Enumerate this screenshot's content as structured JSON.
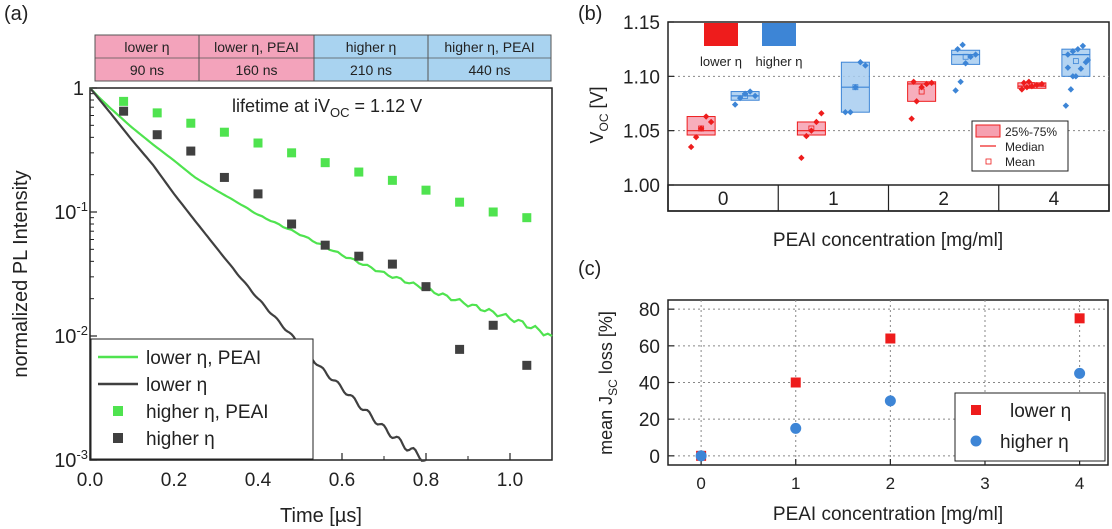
{
  "colors": {
    "green": "#4fe34f",
    "dark": "#404040",
    "red": "#ee1c1c",
    "blue": "#3d85d6",
    "pink": "#f3a3bb",
    "lightblue": "#a9d3f0",
    "boxred": "#f6a0b0",
    "boxblue": "#a7cdf0"
  },
  "chart_data": [
    {
      "panel": "(a)",
      "type": "scatter",
      "xlabel": "Time [µs]",
      "ylabel": "normalized PL Intensity",
      "xlim": [
        0,
        1.1
      ],
      "ylim": [
        0.001,
        1
      ],
      "yscale": "log",
      "xticks": [
        "0.0",
        "0.2",
        "0.4",
        "0.6",
        "0.8",
        "1.0"
      ],
      "yticks": [
        {
          "base": "1",
          "exp": ""
        },
        {
          "base": "10",
          "exp": "-1"
        },
        {
          "base": "10",
          "exp": "-2"
        },
        {
          "base": "10",
          "exp": "-3"
        }
      ],
      "annotation": {
        "prefix": "lifetime at iV",
        "sub": "OC",
        "suffix": " = 1.12 V"
      },
      "lifetime_table": [
        {
          "label": "lower η",
          "value": "90 ns",
          "group": "lower"
        },
        {
          "label": "lower η, PEAI",
          "value": "160 ns",
          "group": "lower"
        },
        {
          "label": "higher η",
          "value": "210 ns",
          "group": "higher"
        },
        {
          "label": "higher η, PEAI",
          "value": "440 ns",
          "group": "higher"
        }
      ],
      "legend": [
        "lower η, PEAI",
        "lower η",
        "higher η, PEAI",
        "higher η"
      ],
      "series": [
        {
          "name": "lower η, PEAI",
          "kind": "line",
          "x": [
            0,
            0.02,
            0.05,
            0.1,
            0.15,
            0.2,
            0.25,
            0.3,
            0.35,
            0.4,
            0.5,
            0.6,
            0.7,
            0.8,
            0.9,
            1.0,
            1.1
          ],
          "y": [
            1,
            0.85,
            0.68,
            0.48,
            0.35,
            0.26,
            0.19,
            0.15,
            0.12,
            0.095,
            0.066,
            0.045,
            0.032,
            0.024,
            0.018,
            0.014,
            0.01
          ]
        },
        {
          "name": "lower η",
          "kind": "line",
          "x": [
            0,
            0.05,
            0.1,
            0.15,
            0.2,
            0.25,
            0.3,
            0.35,
            0.4,
            0.45,
            0.5,
            0.55,
            0.6,
            0.65,
            0.7,
            0.75,
            0.8
          ],
          "y": [
            1,
            0.62,
            0.38,
            0.24,
            0.14,
            0.085,
            0.052,
            0.032,
            0.02,
            0.013,
            0.0085,
            0.0055,
            0.0038,
            0.0026,
            0.0018,
            0.0013,
            0.001
          ]
        },
        {
          "name": "higher η, PEAI",
          "kind": "points",
          "x": [
            0.08,
            0.16,
            0.24,
            0.32,
            0.4,
            0.48,
            0.56,
            0.64,
            0.72,
            0.8,
            0.88,
            0.96,
            1.04
          ],
          "y": [
            0.78,
            0.63,
            0.52,
            0.44,
            0.36,
            0.3,
            0.25,
            0.21,
            0.18,
            0.15,
            0.12,
            0.1,
            0.09
          ]
        },
        {
          "name": "higher η",
          "kind": "points",
          "x": [
            0.08,
            0.16,
            0.24,
            0.32,
            0.4,
            0.48,
            0.56,
            0.64,
            0.72,
            0.8,
            0.88,
            0.96,
            1.04
          ],
          "y": [
            0.65,
            0.42,
            0.31,
            0.19,
            0.14,
            0.08,
            0.054,
            0.044,
            0.038,
            0.025,
            0.0078,
            0.0122,
            0.0058
          ]
        }
      ]
    },
    {
      "panel": "(b)",
      "type": "box",
      "xlabel": "PEAI concentration [mg/ml]",
      "ylabel": {
        "main": "V",
        "sub": "OC",
        "unit": " [V]"
      },
      "categories": [
        "0",
        "1",
        "2",
        "4"
      ],
      "ylim": [
        1.0,
        1.15
      ],
      "yticks": [
        "1.00",
        "1.05",
        "1.10",
        "1.15"
      ],
      "legend_top": [
        "lower η",
        "higher η"
      ],
      "legend_box": [
        "25%-75%",
        "Median",
        "Mean"
      ],
      "boxes": [
        {
          "cat": 0,
          "group": "lower",
          "q1": 1.046,
          "q3": 1.063,
          "median": 1.05,
          "mean": 1.052,
          "points": [
            1.035,
            1.044,
            1.052,
            1.063,
            1.058
          ]
        },
        {
          "cat": 0,
          "group": "higher",
          "q1": 1.078,
          "q3": 1.086,
          "median": 1.082,
          "mean": 1.082,
          "points": [
            1.074,
            1.08,
            1.084,
            1.086,
            1.082
          ]
        },
        {
          "cat": 1,
          "group": "lower",
          "q1": 1.046,
          "q3": 1.058,
          "median": 1.05,
          "mean": 1.052,
          "points": [
            1.025,
            1.045,
            1.05,
            1.058,
            1.066
          ]
        },
        {
          "cat": 1,
          "group": "higher",
          "q1": 1.067,
          "q3": 1.113,
          "median": 1.09,
          "mean": 1.09,
          "points": [
            1.067,
            1.067,
            1.09,
            1.113,
            1.11
          ]
        },
        {
          "cat": 2,
          "group": "lower",
          "q1": 1.077,
          "q3": 1.095,
          "median": 1.093,
          "mean": 1.086,
          "points": [
            1.061,
            1.077,
            1.09,
            1.093,
            1.094,
            1.095
          ]
        },
        {
          "cat": 2,
          "group": "higher",
          "q1": 1.111,
          "q3": 1.124,
          "median": 1.12,
          "mean": 1.118,
          "points": [
            1.087,
            1.095,
            1.112,
            1.118,
            1.12,
            1.125,
            1.129
          ]
        },
        {
          "cat": 3,
          "group": "lower",
          "q1": 1.089,
          "q3": 1.094,
          "median": 1.091,
          "mean": 1.092,
          "points": [
            1.088,
            1.09,
            1.091,
            1.092,
            1.093,
            1.094,
            1.095
          ]
        },
        {
          "cat": 3,
          "group": "higher",
          "q1": 1.1,
          "q3": 1.125,
          "median": 1.12,
          "mean": 1.114,
          "points": [
            1.073,
            1.088,
            1.1,
            1.107,
            1.113,
            1.12,
            1.123,
            1.125,
            1.128,
            1.115,
            1.108,
            1.1
          ]
        }
      ]
    },
    {
      "panel": "(c)",
      "type": "scatter",
      "xlabel": "PEAI concentration [mg/ml]",
      "ylabel": {
        "main": "mean J",
        "sub": "SC",
        "unit": " loss [%]"
      },
      "xlim": [
        -0.35,
        4.3
      ],
      "ylim": [
        -5,
        85
      ],
      "xticks": [
        "0",
        "1",
        "2",
        "3",
        "4"
      ],
      "yticks": [
        "0",
        "20",
        "40",
        "60",
        "80"
      ],
      "series": [
        {
          "name": "lower η",
          "marker": "square",
          "x": [
            0,
            1,
            2,
            4
          ],
          "y": [
            0,
            40,
            64,
            75
          ]
        },
        {
          "name": "higher η",
          "marker": "circle",
          "x": [
            0,
            1,
            2,
            4
          ],
          "y": [
            0,
            15,
            30,
            45
          ]
        }
      ]
    }
  ]
}
